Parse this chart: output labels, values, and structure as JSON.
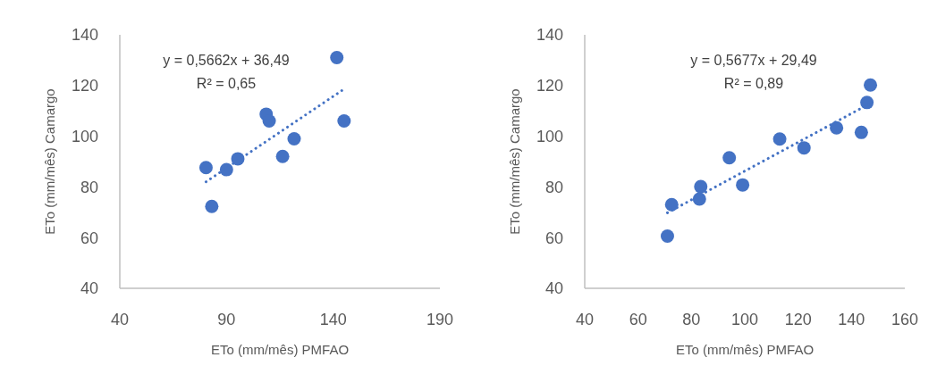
{
  "chart_data": [
    {
      "type": "scatter",
      "xlabel": "ETo (mm/mês) PMFAO",
      "ylabel": "ETo (mm/mês) Camargo",
      "xlim": [
        40,
        190
      ],
      "xticks": [
        40,
        90,
        140,
        190
      ],
      "ylim": [
        40,
        140
      ],
      "yticks": [
        40,
        60,
        80,
        100,
        120,
        140
      ],
      "grid": false,
      "annotations": [
        "y = 0,5662x + 36,49",
        "R² = 0,65"
      ],
      "series": [
        {
          "color": "#4472c4",
          "marker": "circle",
          "x": [
            80.4,
            83.1,
            90,
            95.3,
            108.6,
            110,
            116.3,
            121.7,
            141.7,
            145.1
          ],
          "values": [
            87.6,
            72.3,
            86.8,
            91.1,
            108.7,
            106,
            92,
            99,
            131,
            106
          ]
        },
        {
          "type": "line",
          "color": "#4472c4",
          "line_style": "dotted",
          "x": [
            80.4,
            145.1
          ],
          "values": [
            82,
            118.6
          ]
        }
      ]
    },
    {
      "type": "scatter",
      "xlabel": "ETo (mm/mês) PMFAO",
      "ylabel": "ETo (mm/mês) Camargo",
      "xlim": [
        40,
        160
      ],
      "xticks": [
        40,
        60,
        80,
        100,
        120,
        140,
        160
      ],
      "ylim": [
        40,
        140
      ],
      "yticks": [
        40,
        60,
        80,
        100,
        120,
        140
      ],
      "grid": false,
      "annotations": [
        "y = 0,5677x + 29,49",
        "R² = 0,89"
      ],
      "series": [
        {
          "color": "#4472c4",
          "marker": "circle",
          "x": [
            71,
            72.6,
            83,
            83.5,
            94.2,
            99.2,
            113.1,
            122.2,
            134.4,
            143.7,
            145.8,
            147.1
          ],
          "values": [
            60.6,
            73,
            75.2,
            80.1,
            91.5,
            80.8,
            98.9,
            95.4,
            103.3,
            101.5,
            113.3,
            120.2
          ]
        },
        {
          "type": "line",
          "color": "#4472c4",
          "line_style": "dotted",
          "x": [
            71,
            147.1
          ],
          "values": [
            69.8,
            113
          ]
        }
      ]
    }
  ]
}
